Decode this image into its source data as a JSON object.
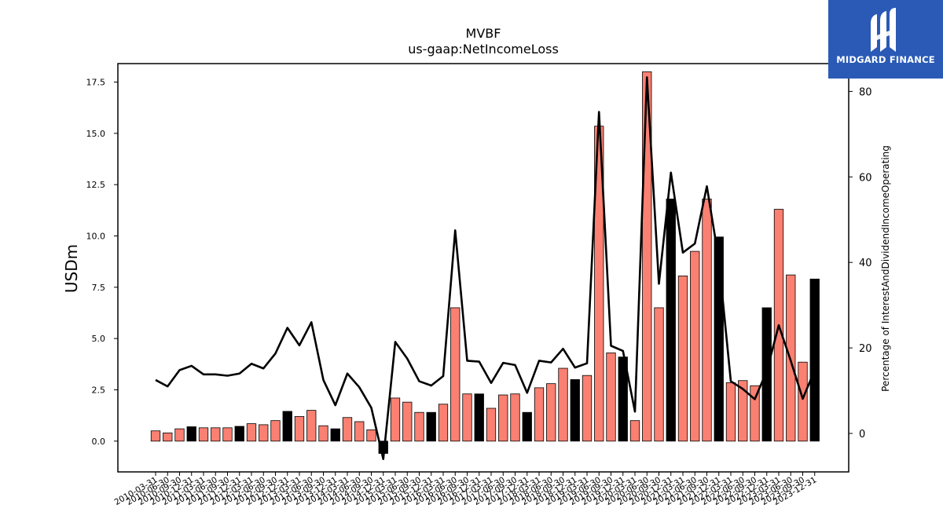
{
  "chart_data": {
    "type": "bar",
    "title": "MVBF",
    "subtitle": "us-gaap:NetIncomeLoss",
    "ylabel": "USDm",
    "y2label": "Percentage of InterestAndDividendIncomeOperating",
    "ylim": [
      -1.5,
      18.4
    ],
    "y2lim": [
      -9,
      86.5
    ],
    "yticks": [
      "0.0",
      "2.5",
      "5.0",
      "7.5",
      "10.0",
      "12.5",
      "15.0",
      "17.5"
    ],
    "y2ticks": [
      "0",
      "20",
      "40",
      "60",
      "80"
    ],
    "categories": [
      "2010-03-31",
      "2010-06-30",
      "2010-09-30",
      "2010-12-31",
      "2011-03-31",
      "2011-06-30",
      "2011-09-30",
      "2011-12-31",
      "2012-03-31",
      "2012-06-30",
      "2012-09-30",
      "2012-12-31",
      "2013-03-31",
      "2013-06-30",
      "2013-09-30",
      "2013-12-31",
      "2014-03-31",
      "2014-06-30",
      "2014-09-30",
      "2014-12-31",
      "2015-03-31",
      "2015-06-30",
      "2015-09-30",
      "2015-12-31",
      "2016-03-31",
      "2016-06-30",
      "2016-09-30",
      "2016-12-31",
      "2017-03-31",
      "2017-06-30",
      "2017-09-30",
      "2017-12-31",
      "2018-03-31",
      "2018-06-30",
      "2018-09-30",
      "2018-12-31",
      "2019-03-31",
      "2019-06-30",
      "2019-09-30",
      "2019-12-31",
      "2020-03-31",
      "2020-06-30",
      "2020-09-30",
      "2020-12-31",
      "2021-03-31",
      "2021-06-30",
      "2021-09-30",
      "2021-12-31",
      "2022-03-31",
      "2022-06-30",
      "2022-09-30",
      "2022-12-31",
      "2023-03-31",
      "2023-06-30",
      "2023-09-30",
      "2023-12-31"
    ],
    "series": [
      {
        "axis": "left",
        "kind": "bar",
        "values": [
          0.5,
          0.4,
          0.6,
          0.7,
          0.65,
          0.65,
          0.65,
          0.72,
          0.85,
          0.8,
          1.0,
          1.45,
          1.2,
          1.5,
          0.75,
          0.6,
          1.15,
          0.95,
          0.55,
          -0.6,
          2.1,
          1.9,
          1.4,
          1.4,
          1.8,
          6.5,
          2.3,
          2.3,
          1.6,
          2.25,
          2.3,
          1.4,
          2.6,
          2.8,
          3.55,
          3.0,
          3.2,
          15.35,
          4.3,
          4.1,
          1.0,
          18.0,
          6.5,
          11.8,
          8.05,
          9.25,
          11.8,
          9.95,
          2.85,
          2.95,
          2.7,
          6.5,
          11.3,
          8.1,
          3.85,
          7.9
        ],
        "colors": [
          "#fa8072",
          "#fa8072",
          "#fa8072",
          "#000000",
          "#fa8072",
          "#fa8072",
          "#fa8072",
          "#000000",
          "#fa8072",
          "#fa8072",
          "#fa8072",
          "#000000",
          "#fa8072",
          "#fa8072",
          "#fa8072",
          "#000000",
          "#fa8072",
          "#fa8072",
          "#fa8072",
          "#000000",
          "#fa8072",
          "#fa8072",
          "#fa8072",
          "#000000",
          "#fa8072",
          "#fa8072",
          "#fa8072",
          "#000000",
          "#fa8072",
          "#fa8072",
          "#fa8072",
          "#000000",
          "#fa8072",
          "#fa8072",
          "#fa8072",
          "#000000",
          "#fa8072",
          "#fa8072",
          "#fa8072",
          "#000000",
          "#fa8072",
          "#fa8072",
          "#fa8072",
          "#000000",
          "#fa8072",
          "#fa8072",
          "#fa8072",
          "#000000",
          "#fa8072",
          "#fa8072",
          "#fa8072",
          "#000000",
          "#fa8072",
          "#fa8072",
          "#fa8072",
          "#000000"
        ]
      },
      {
        "axis": "right",
        "kind": "line",
        "color": "#000000",
        "values": [
          12.5,
          11,
          14.8,
          15.8,
          13.8,
          13.8,
          13.5,
          14,
          16.3,
          15.2,
          18.7,
          24.7,
          20.6,
          26,
          12.5,
          6.6,
          14,
          10.8,
          6,
          -6,
          21.4,
          17.5,
          12.2,
          11.2,
          13.4,
          47.5,
          17,
          16.8,
          11.8,
          16.5,
          16,
          9.5,
          17,
          16.6,
          19.8,
          15.4,
          16.4,
          75.2,
          20.5,
          19.3,
          5.1,
          83.3,
          35,
          61,
          42.3,
          44.4,
          57.8,
          40.5,
          12.2,
          10.4,
          8,
          14.6,
          25.3,
          17,
          8.1,
          14.8
        ]
      }
    ],
    "colors": {
      "positive_bar": "#fa8072",
      "year_end_bar": "#000000",
      "line": "#000000"
    }
  },
  "logo": {
    "name": "MIDGARD FINANCE",
    "bg": "#2a5ab5"
  }
}
